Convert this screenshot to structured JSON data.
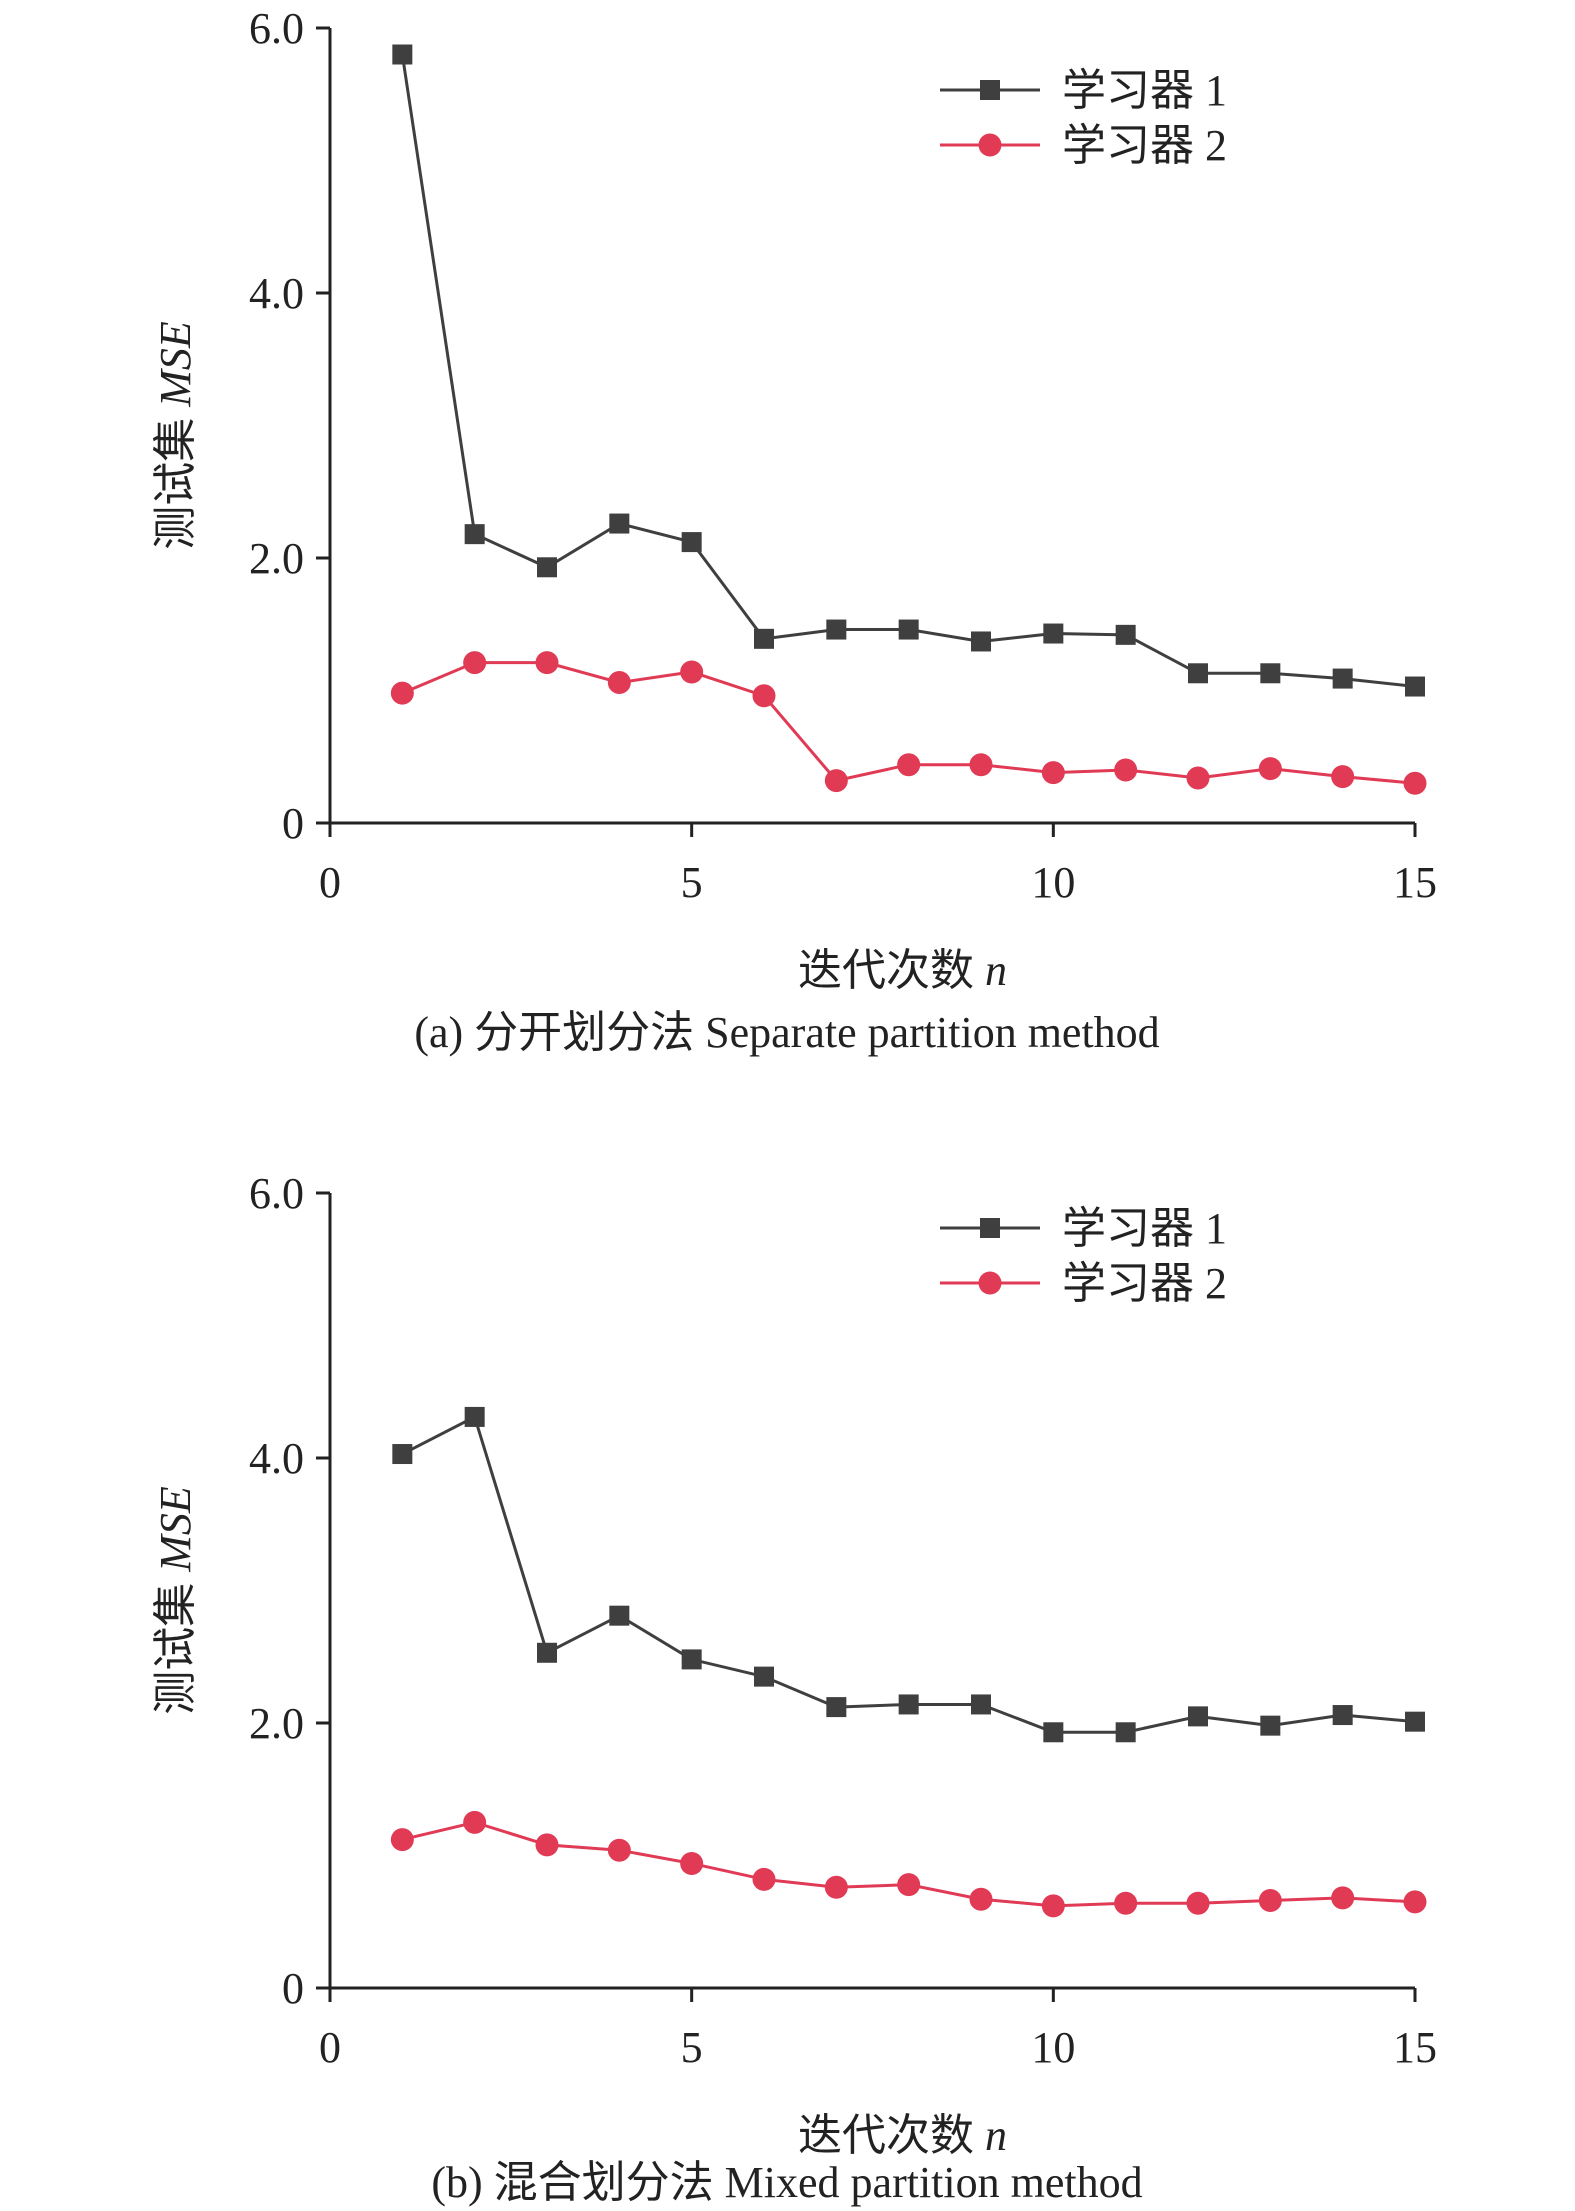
{
  "colors": {
    "series1": "#3f3f3f",
    "series2": "#e03a55",
    "axis": "#222222"
  },
  "chart_data": [
    {
      "type": "line",
      "caption": "(a) 分开划分法 Separate partition method",
      "xlabel": "迭代次数 ",
      "xlabel_var": "n",
      "ylabel": "测试集 ",
      "ylabel_var": "MSE",
      "xlim": [
        0,
        15
      ],
      "ylim": [
        0,
        6
      ],
      "xticks": [
        0,
        5,
        10,
        15
      ],
      "xtick_labels": [
        "0",
        "5",
        "10",
        "15"
      ],
      "yticks": [
        0,
        2,
        4,
        6
      ],
      "ytick_labels": [
        "0",
        "2.0",
        "4.0",
        "6.0"
      ],
      "grid": false,
      "legend_position": "top-right",
      "x": [
        1,
        2,
        3,
        4,
        5,
        6,
        7,
        8,
        9,
        10,
        11,
        12,
        13,
        14,
        15
      ],
      "series": [
        {
          "name": "学习器 1",
          "marker": "square",
          "values": [
            5.8,
            2.18,
            1.93,
            2.26,
            2.12,
            1.39,
            1.46,
            1.46,
            1.37,
            1.43,
            1.42,
            1.13,
            1.13,
            1.09,
            1.03
          ]
        },
        {
          "name": "学习器 2",
          "marker": "circle",
          "values": [
            0.98,
            1.21,
            1.21,
            1.06,
            1.14,
            0.96,
            0.32,
            0.44,
            0.44,
            0.38,
            0.4,
            0.34,
            0.41,
            0.35,
            0.3
          ]
        }
      ]
    },
    {
      "type": "line",
      "caption": "(b) 混合划分法 Mixed partition method",
      "xlabel": "迭代次数 ",
      "xlabel_var": "n",
      "ylabel": "测试集 ",
      "ylabel_var": "MSE",
      "xlim": [
        0,
        15
      ],
      "ylim": [
        0,
        6
      ],
      "xticks": [
        0,
        5,
        10,
        15
      ],
      "xtick_labels": [
        "0",
        "5",
        "10",
        "15"
      ],
      "yticks": [
        0,
        2,
        4,
        6
      ],
      "ytick_labels": [
        "0",
        "2.0",
        "4.0",
        "6.0"
      ],
      "grid": false,
      "legend_position": "top-right",
      "x": [
        1,
        2,
        3,
        4,
        5,
        6,
        7,
        8,
        9,
        10,
        11,
        12,
        13,
        14,
        15
      ],
      "series": [
        {
          "name": "学习器 1",
          "marker": "square",
          "values": [
            4.03,
            4.31,
            2.53,
            2.81,
            2.48,
            2.35,
            2.12,
            2.14,
            2.14,
            1.93,
            1.93,
            2.05,
            1.98,
            2.06,
            2.01
          ]
        },
        {
          "name": "学习器 2",
          "marker": "circle",
          "values": [
            1.12,
            1.25,
            1.08,
            1.04,
            0.94,
            0.82,
            0.76,
            0.78,
            0.67,
            0.62,
            0.64,
            0.64,
            0.66,
            0.68,
            0.65
          ]
        }
      ]
    }
  ]
}
